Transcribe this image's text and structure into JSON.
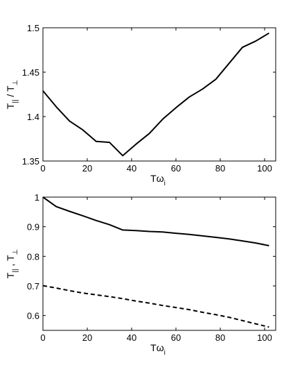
{
  "chart_data": [
    {
      "type": "line",
      "title": "",
      "xlabel": "Tω",
      "xlabel_sub": "i",
      "ylabel_parts": [
        "T",
        "||",
        " / T",
        "⊥"
      ],
      "xlim": [
        0,
        105
      ],
      "ylim": [
        1.35,
        1.5
      ],
      "xticks": [
        0,
        20,
        40,
        60,
        80,
        100
      ],
      "yticks": [
        1.35,
        1.4,
        1.45,
        1.5
      ],
      "grid": false,
      "series": [
        {
          "style": "solid",
          "x": [
            0,
            6,
            12,
            18,
            24,
            30,
            36,
            42,
            48,
            54,
            60,
            66,
            72,
            78,
            84,
            90,
            96,
            102
          ],
          "y": [
            1.429,
            1.411,
            1.395,
            1.385,
            1.372,
            1.371,
            1.356,
            1.369,
            1.381,
            1.397,
            1.41,
            1.422,
            1.431,
            1.442,
            1.46,
            1.478,
            1.485,
            1.494
          ]
        }
      ]
    },
    {
      "type": "line",
      "title": "",
      "xlabel": "Tω",
      "xlabel_sub": "i",
      "ylabel_parts": [
        "T",
        "||",
        " , T",
        "⊥"
      ],
      "xlim": [
        0,
        105
      ],
      "ylim": [
        0.55,
        1.0
      ],
      "xticks": [
        0,
        20,
        40,
        60,
        80,
        100
      ],
      "yticks": [
        0.6,
        0.7,
        0.8,
        0.9,
        1
      ],
      "grid": false,
      "series": [
        {
          "style": "solid",
          "x": [
            0,
            6,
            12,
            18,
            24,
            30,
            36,
            42,
            48,
            54,
            60,
            66,
            72,
            78,
            84,
            90,
            96,
            102
          ],
          "y": [
            1.0,
            0.968,
            0.952,
            0.937,
            0.921,
            0.907,
            0.889,
            0.887,
            0.884,
            0.882,
            0.878,
            0.874,
            0.869,
            0.864,
            0.859,
            0.852,
            0.845,
            0.836
          ]
        },
        {
          "style": "dashed",
          "x": [
            0,
            6,
            12,
            18,
            24,
            30,
            36,
            42,
            48,
            54,
            60,
            66,
            72,
            78,
            84,
            90,
            96,
            102
          ],
          "y": [
            0.701,
            0.693,
            0.684,
            0.676,
            0.67,
            0.664,
            0.657,
            0.649,
            0.642,
            0.634,
            0.627,
            0.62,
            0.611,
            0.603,
            0.594,
            0.583,
            0.572,
            0.561
          ]
        }
      ]
    }
  ]
}
